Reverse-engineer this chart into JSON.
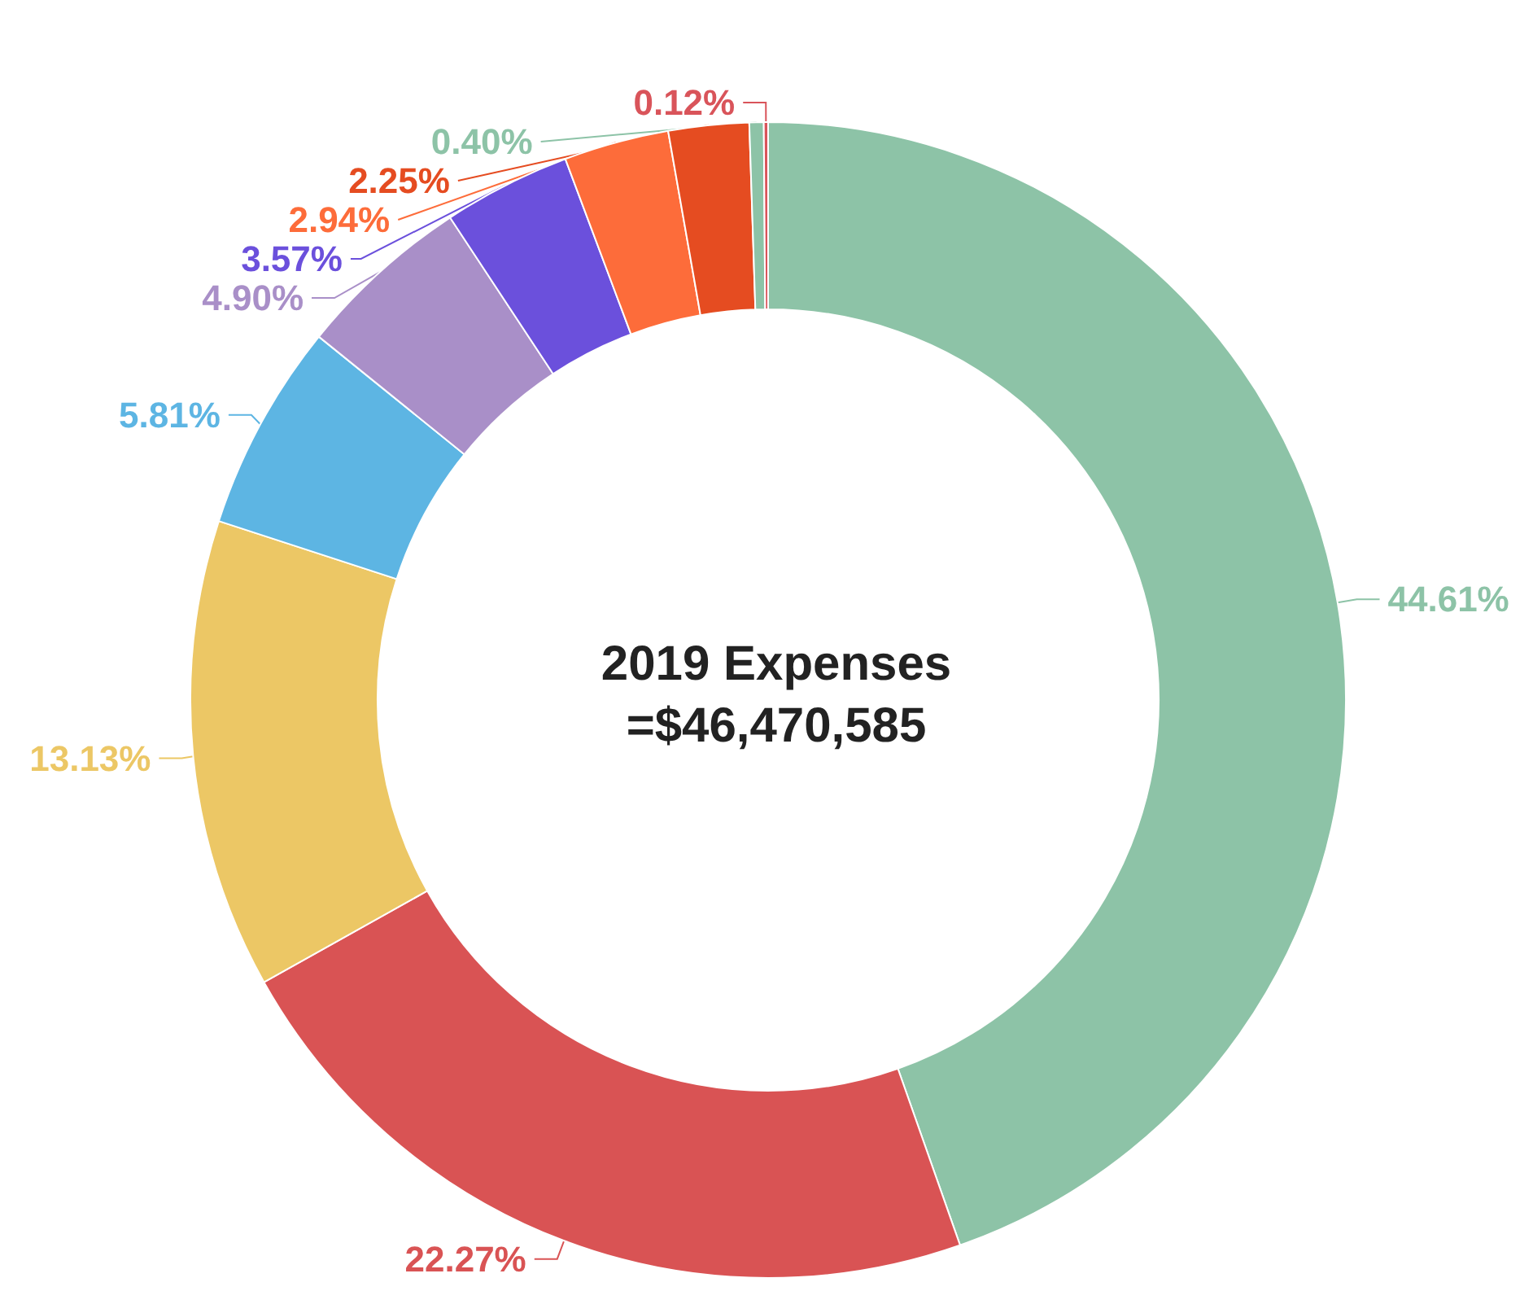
{
  "chart_data": {
    "type": "donut",
    "title": "2019 Expenses",
    "subtitle": "=$46,470,585",
    "categories": [
      null,
      null,
      null,
      null,
      null,
      null,
      null,
      null,
      null,
      null
    ],
    "values": [
      44.61,
      22.27,
      13.13,
      5.81,
      4.9,
      3.57,
      2.94,
      2.25,
      0.4,
      0.12
    ],
    "value_labels": [
      "44.61%",
      "22.27%",
      "13.13%",
      "5.81%",
      "4.90%",
      "3.57%",
      "2.94%",
      "2.25%",
      "0.40%",
      "0.12%"
    ],
    "colors": [
      "#8dc3a7",
      "#d95354",
      "#ecc765",
      "#5db5e3",
      "#a98fc8",
      "#6b50dc",
      "#fd6c3a",
      "#e54c21",
      "#8dc3a7",
      "#d9545a"
    ]
  }
}
